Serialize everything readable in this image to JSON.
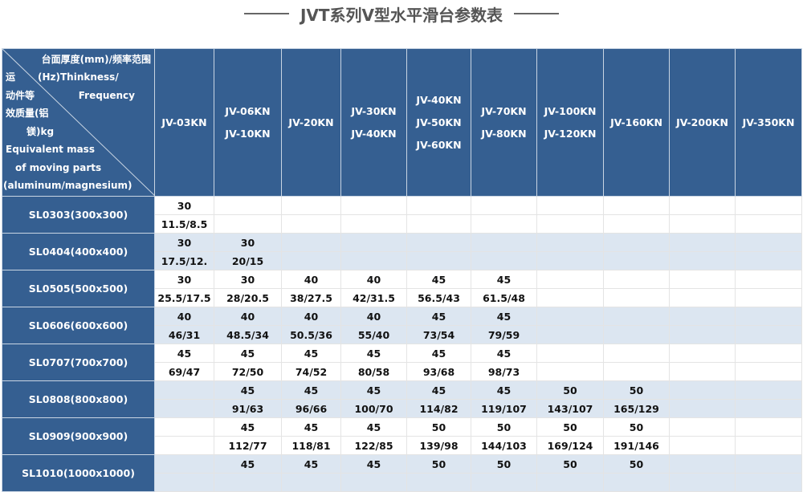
{
  "title": "JVT系列V型水平滑台参数表",
  "corner": {
    "top_lines": [
      "台面厚度(mm)/频率范围",
      "(Hz)Thinkness/",
      "Frequency"
    ],
    "bottom_lines": [
      "运",
      "动件等",
      "效质量(铝",
      "镁)kg",
      "Equivalent mass",
      "of moving parts",
      "(aluminum/magnesium)"
    ]
  },
  "columns": [
    [
      "JV-03KN"
    ],
    [
      "JV-06KN",
      "JV-10KN"
    ],
    [
      "JV-20KN"
    ],
    [
      "JV-30KN",
      "JV-40KN"
    ],
    [
      "JV-40KN",
      "JV-50KN",
      "JV-60KN"
    ],
    [
      "JV-70KN",
      "JV-80KN"
    ],
    [
      "JV-100KN",
      "JV-120KN"
    ],
    [
      "JV-160KN"
    ],
    [
      "JV-200KN"
    ],
    [
      "JV-350KN"
    ]
  ],
  "rows": [
    {
      "label": "SL0303(300x300)",
      "thickness": [
        "30",
        "",
        "",
        "",
        "",
        "",
        "",
        "",
        "",
        ""
      ],
      "mass": [
        "11.5/8.5",
        "",
        "",
        "",
        "",
        "",
        "",
        "",
        "",
        ""
      ]
    },
    {
      "label": "SL0404(400x400)",
      "thickness": [
        "30",
        "30",
        "",
        "",
        "",
        "",
        "",
        "",
        "",
        ""
      ],
      "mass": [
        "17.5/12.",
        "20/15",
        "",
        "",
        "",
        "",
        "",
        "",
        "",
        ""
      ]
    },
    {
      "label": "SL0505(500x500)",
      "thickness": [
        "30",
        "30",
        "40",
        "40",
        "45",
        "45",
        "",
        "",
        "",
        ""
      ],
      "mass": [
        "25.5/17.5",
        "28/20.5",
        "38/27.5",
        "42/31.5",
        "56.5/43",
        "61.5/48",
        "",
        "",
        "",
        ""
      ]
    },
    {
      "label": "SL0606(600x600)",
      "thickness": [
        "40",
        "40",
        "40",
        "40",
        "45",
        "45",
        "",
        "",
        "",
        ""
      ],
      "mass": [
        "46/31",
        "48.5/34",
        "50.5/36",
        "55/40",
        "73/54",
        "79/59",
        "",
        "",
        "",
        ""
      ]
    },
    {
      "label": "SL0707(700x700)",
      "thickness": [
        "45",
        "45",
        "45",
        "45",
        "45",
        "45",
        "",
        "",
        "",
        ""
      ],
      "mass": [
        "69/47",
        "72/50",
        "74/52",
        "80/58",
        "93/68",
        "98/73",
        "",
        "",
        "",
        ""
      ]
    },
    {
      "label": "SL0808(800x800)",
      "thickness": [
        "",
        "45",
        "45",
        "45",
        "45",
        "45",
        "50",
        "50",
        "",
        ""
      ],
      "mass": [
        "",
        "91/63",
        "96/66",
        "100/70",
        "114/82",
        "119/107",
        "143/107",
        "165/129",
        "",
        ""
      ]
    },
    {
      "label": "SL0909(900x900)",
      "thickness": [
        "",
        "45",
        "45",
        "45",
        "50",
        "50",
        "50",
        "50",
        "",
        ""
      ],
      "mass": [
        "",
        "112/77",
        "118/81",
        "122/85",
        "139/98",
        "144/103",
        "169/124",
        "191/146",
        "",
        ""
      ]
    },
    {
      "label": "SL1010(1000x1000)",
      "thickness": [
        "",
        "45",
        "45",
        "45",
        "50",
        "50",
        "50",
        "50",
        "",
        ""
      ],
      "mass": [
        "",
        "",
        "",
        "",
        "",
        "",
        "",
        "",
        "",
        ""
      ]
    }
  ]
}
